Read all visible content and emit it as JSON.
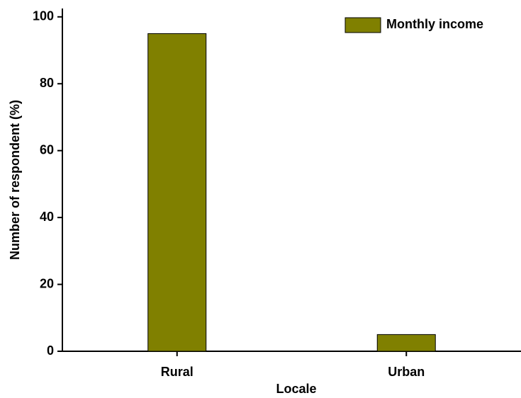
{
  "chart_data": {
    "type": "bar",
    "categories": [
      "Rural",
      "Urban"
    ],
    "series": [
      {
        "name": "Monthly income",
        "color": "#808000",
        "values": [
          95,
          5
        ]
      }
    ],
    "x_label": "Locale",
    "y_label": "Number of respondent (%)",
    "ylim": [
      0,
      102.5
    ],
    "yticks": [
      0,
      20,
      40,
      60,
      80,
      100
    ],
    "legend": "upper right",
    "grid": false
  }
}
